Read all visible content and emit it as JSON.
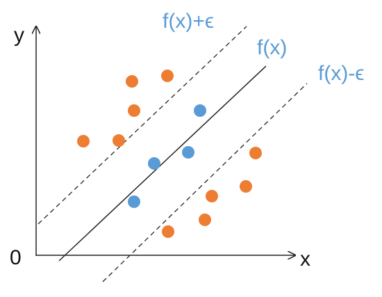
{
  "axes": {
    "y_label": "y",
    "x_label": "x",
    "origin_label": "0"
  },
  "lines": {
    "upper": "f(x)+ϵ",
    "center": "f(x)",
    "lower": "f(x)-ϵ"
  }
}
